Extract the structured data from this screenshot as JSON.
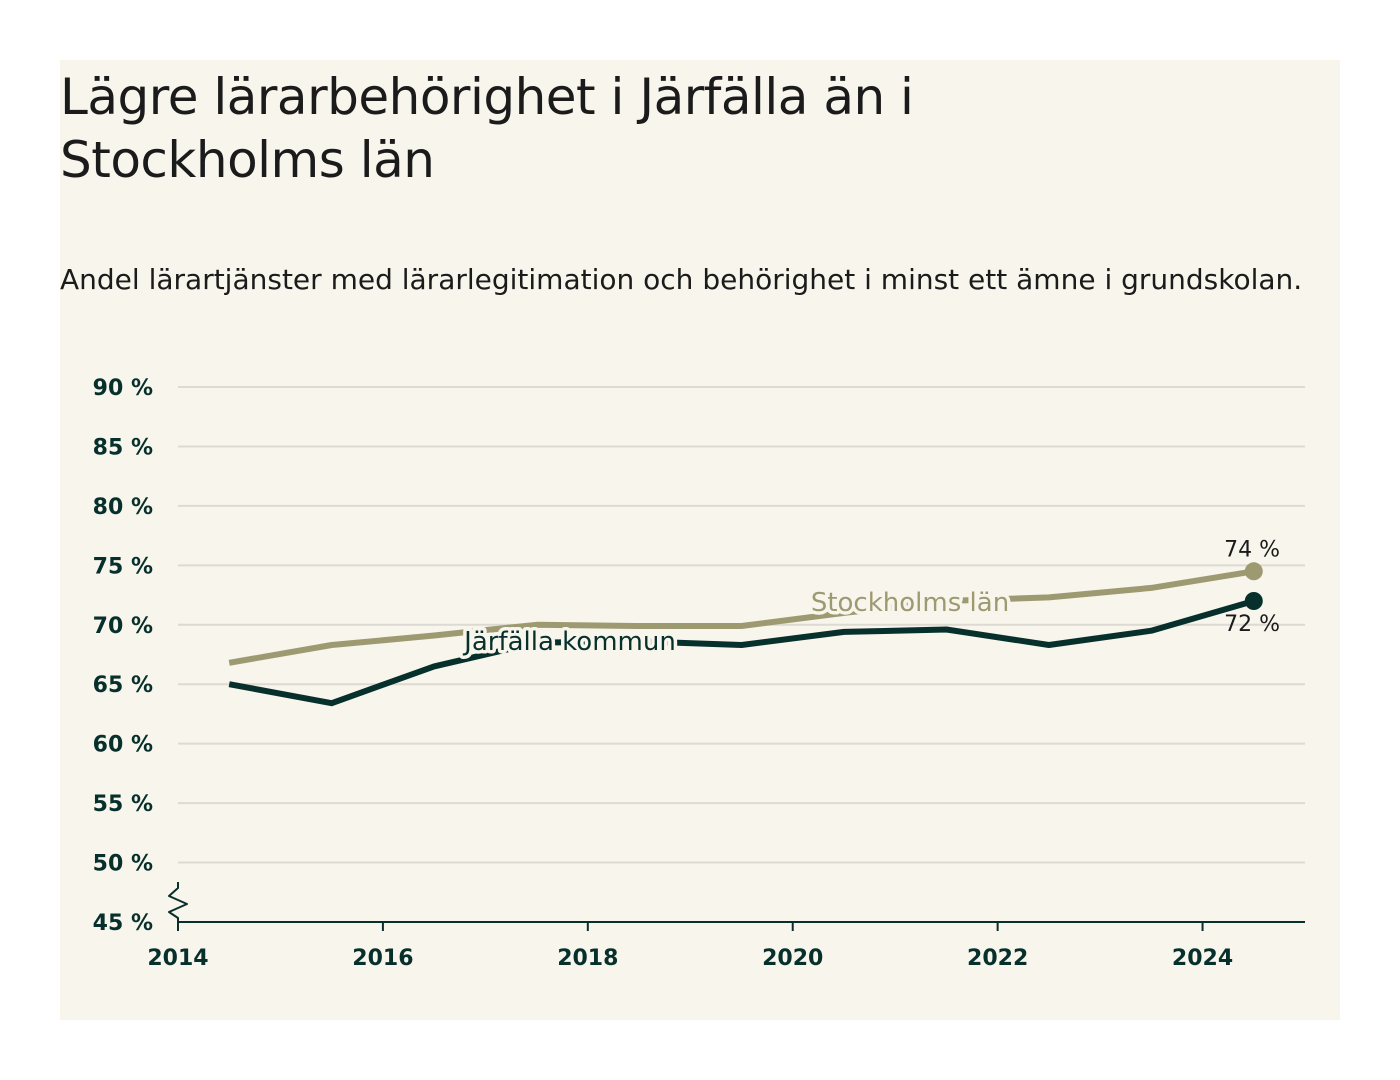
{
  "title": "Lägre lärarbehörighet i Järfälla än i Stockholms län",
  "subtitle": "Andel lärartjänster med lärarlegitimation och behörighet i minst ett ämne i grundskolan.",
  "chart_data": {
    "type": "line",
    "title": "Lägre lärarbehörighet i Järfälla än i Stockholms län",
    "subtitle": "Andel lärartjänster med lärarlegitimation och behörighet i minst ett ämne i grundskolan.",
    "xlabel": "",
    "ylabel": "",
    "xlim": [
      2014,
      2025
    ],
    "ylim": [
      45,
      90
    ],
    "y_axis_break": true,
    "y_ticks": [
      45,
      50,
      55,
      60,
      65,
      70,
      75,
      80,
      85,
      90
    ],
    "y_tick_labels": [
      "45 %",
      "50 %",
      "55 %",
      "60 %",
      "65 %",
      "70 %",
      "75 %",
      "80 %",
      "85 %",
      "90 %"
    ],
    "x_ticks": [
      2014,
      2016,
      2018,
      2020,
      2022,
      2024
    ],
    "x_tick_labels": [
      "2014",
      "2016",
      "2018",
      "2020",
      "2022",
      "2024"
    ],
    "grid": true,
    "x": [
      2014.5,
      2015.5,
      2016.5,
      2017.5,
      2018.5,
      2019.5,
      2020.5,
      2021.5,
      2022.5,
      2023.5,
      2024.5
    ],
    "series": [
      {
        "name": "Stockholms län",
        "color": "#9d9a72",
        "values": [
          66.8,
          68.3,
          69.1,
          70.0,
          69.9,
          69.9,
          71.0,
          72.0,
          72.3,
          73.1,
          74.5
        ],
        "end_label": "74 %"
      },
      {
        "name": "Järfälla kommun",
        "color": "#07302c",
        "values": [
          65.0,
          63.4,
          66.5,
          68.5,
          68.6,
          68.3,
          69.4,
          69.6,
          68.3,
          69.5,
          72.0
        ],
        "end_label": "72 %"
      }
    ]
  }
}
